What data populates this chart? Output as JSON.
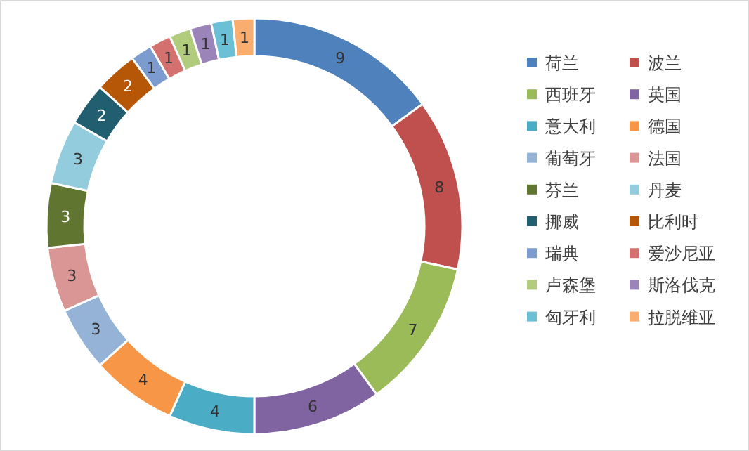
{
  "chart_data": {
    "type": "donut",
    "categories": [
      "荷兰",
      "波兰",
      "西班牙",
      "英国",
      "意大利",
      "德国",
      "葡萄牙",
      "法国",
      "芬兰",
      "丹麦",
      "挪威",
      "比利时",
      "瑞典",
      "爱沙尼亚",
      "卢森堡",
      "斯洛伐克",
      "匈牙利",
      "拉脱维亚"
    ],
    "values": [
      9,
      8,
      7,
      6,
      4,
      4,
      3,
      3,
      3,
      3,
      2,
      2,
      1,
      1,
      1,
      1,
      1,
      1
    ],
    "colors": [
      "#4f81bd",
      "#c0504d",
      "#9bbb59",
      "#8064a2",
      "#4bacc6",
      "#f79646",
      "#95b3d7",
      "#d99694",
      "#5f7530",
      "#93cddd",
      "#215f70",
      "#b65708",
      "#7c9cd0",
      "#d4706d",
      "#b0cc7c",
      "#9b85b8",
      "#6cc0d6",
      "#f9ad6e"
    ],
    "data_labels": true,
    "legend": "right"
  }
}
